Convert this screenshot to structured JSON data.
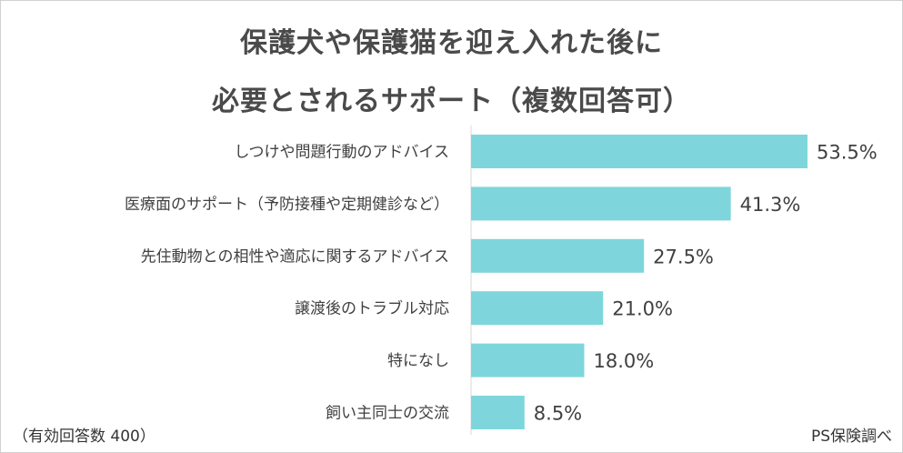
{
  "title_lines": [
    "保護犬や保護猫を迎え入れた後に",
    "必要とされるサポート（複数回答可）"
  ],
  "note_left": "（有効回答数 400）",
  "note_right": "PS保険調べ",
  "colors": {
    "bar": "#7ed6dc",
    "axis": "#d9d9d9",
    "text": "#404040"
  },
  "chart_data": {
    "type": "bar",
    "orientation": "horizontal",
    "title": "保護犬や保護猫を迎え入れた後に必要とされるサポート（複数回答可）",
    "unit": "%",
    "categories": [
      "しつけや問題行動のアドバイス",
      "医療面のサポート（予防接種や定期健診など）",
      "先住動物との相性や適応に関するアドバイス",
      "譲渡後のトラブル対応",
      "特になし",
      "飼い主同士の交流"
    ],
    "values": [
      53.5,
      41.3,
      27.5,
      21.0,
      18.0,
      8.5
    ],
    "data_labels": [
      "53.5%",
      "41.3%",
      "27.5%",
      "21.0%",
      "18.0%",
      "8.5%"
    ],
    "xlim": [
      0,
      53.5
    ],
    "grid": false,
    "legend": "none"
  }
}
